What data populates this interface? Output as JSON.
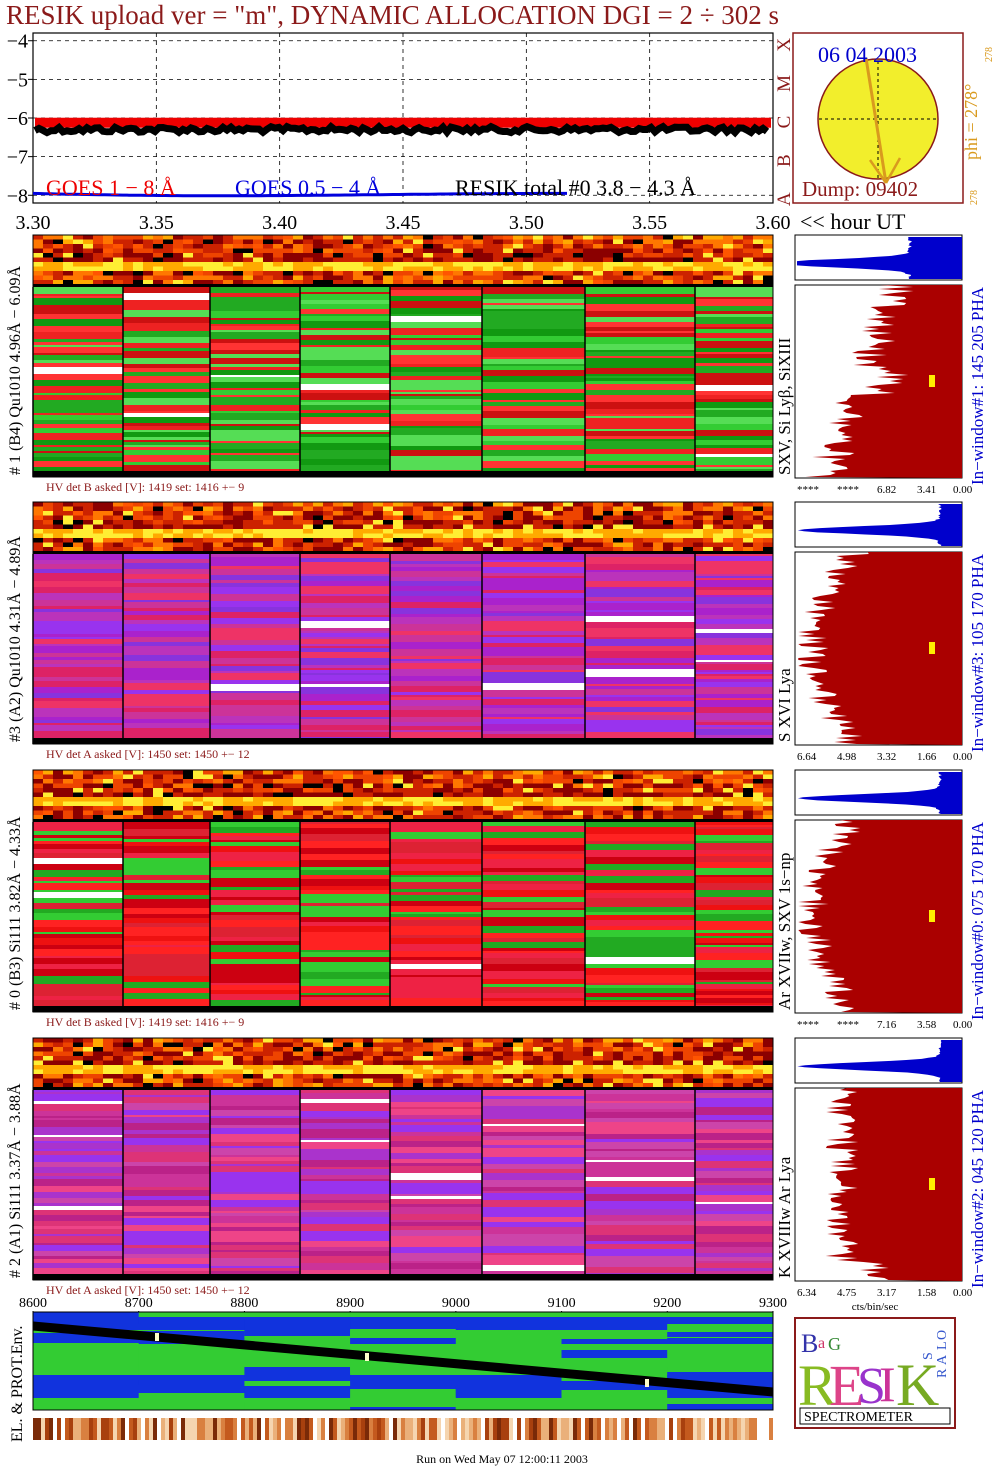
{
  "title": "RESIK upload ver = \"m\", DYNAMIC ALLOCATION  DGI =   2 ÷ 302 s",
  "colors": {
    "dark_red": "#8b1a1a",
    "goes_red": "#ee0000",
    "goes_blue": "#0000dd",
    "orange": "#e2a020",
    "hist_red": "#aa0000",
    "hist_blue": "#0000cc",
    "yellow": "#ffff33",
    "green": "#33cc33",
    "magenta": "#cc33aa",
    "env_blue": "#1133dd"
  },
  "top_panel": {
    "chart_data": {
      "type": "line",
      "y_ticks": [
        "−4",
        "−5",
        "−6",
        "−7",
        "−8"
      ],
      "x_ticks": [
        "3.30",
        "3.35",
        "3.40",
        "3.45",
        "3.50",
        "3.55",
        "3.60"
      ],
      "x_unit": "<< hour UT",
      "xlim": [
        3.3,
        3.6
      ],
      "ylim": [
        -8.2,
        -3.8
      ],
      "class_letters": [
        "X",
        "M",
        "C",
        "B",
        "A"
      ],
      "series": [
        {
          "name": "GOES 1 − 8 Å",
          "color": "#ee0000",
          "level": -6.2
        },
        {
          "name": "RESIK total #0  3.8 − 4.3 Å",
          "color": "#000000",
          "level": -6.3
        },
        {
          "name": "GOES 0.5 − 4 Å",
          "color": "#0000dd",
          "level": -7.9
        }
      ]
    }
  },
  "sun_inset": {
    "date": "06 04 2003",
    "dump": "Dump: 09402",
    "phi_label": "phi = 278°",
    "phi_small_top": "278",
    "phi_small_bottom": "278"
  },
  "detectors": [
    {
      "ylabel": "# 1 (B4) Qu1010 4.96Å − 6.09Å",
      "hv": "HV det B asked [V]:  1419 set:  1416 +−    9",
      "line_label": "SXV, Si Lyβ, SiXIII",
      "window_label": "In−window#1:  145 205 PHA",
      "hist_ticks": [
        "****",
        "****",
        "6.82",
        "3.41",
        "0.00"
      ],
      "scheme": "green",
      "hist_shape": "mid"
    },
    {
      "ylabel": "#3 (A2) Qu1010  4.31Å − 4.89Å",
      "hv": "HV det A asked [V]:  1450 set:  1450 +−    12",
      "line_label": "S XVI Lya",
      "window_label": "In−window#3:  105 170 PHA",
      "hist_ticks": [
        "6.64",
        "4.98",
        "3.32",
        "1.66",
        "0.00"
      ],
      "scheme": "magenta",
      "hist_shape": "wide"
    },
    {
      "ylabel": "# 0 (B3) Si111  3.82Å − 4.33Å",
      "hv": "HV det B asked [V]:  1419 set:  1416 +−    9",
      "line_label": "Ar XVIIw,  SXV 1s−np",
      "window_label": "In−window#0:  075 170 PHA",
      "hist_ticks": [
        "****",
        "****",
        "7.16",
        "3.58",
        "0.00"
      ],
      "scheme": "red",
      "hist_shape": "wide"
    },
    {
      "ylabel": "# 2 (A1) Si111  3.37Å − 3.88Å",
      "hv": "HV det A asked [V]:  1450 set:  1450 +−    12",
      "line_label": "K XVIIIw  Ar Lya",
      "window_label": "In−window#2:  045 120 PHA",
      "hist_ticks": [
        "6.34",
        "4.75",
        "3.17",
        "1.58",
        "0.00"
      ],
      "hist_xunit": "cts/bin/sec",
      "scheme": "pink",
      "hist_shape": "full"
    }
  ],
  "env_panel": {
    "ylabel": "EL. & PROT.Env.",
    "x_ticks": [
      "8600",
      "8700",
      "8800",
      "8900",
      "9000",
      "9100",
      "9200",
      "9300"
    ]
  },
  "logo": {
    "letters": [
      "B",
      "R",
      "E",
      "S",
      "I",
      "K",
      "a",
      "G",
      "S",
      "O",
      "L",
      "A",
      "R"
    ],
    "caption": "SPECTROMETER"
  },
  "footer": "Run on Wed May 07 12:00:11 2003"
}
